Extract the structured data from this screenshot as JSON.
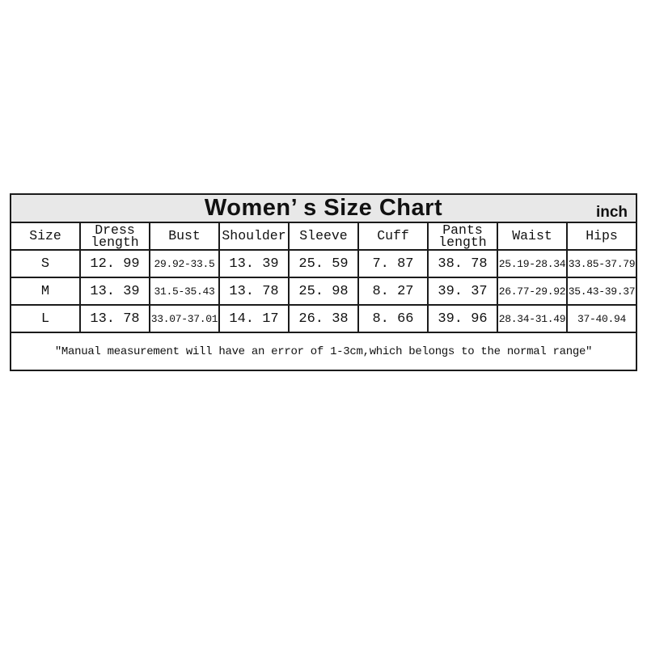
{
  "page": {
    "background_color": "#ffffff"
  },
  "table": {
    "title": "Women’ s Size Chart",
    "unit": "inch",
    "title_bg_color": "#e8e8e8",
    "border_color": "#1b1b1b",
    "headers": [
      "Size",
      "Dress\nlength",
      "Bust",
      "Shoulder",
      "Sleeve",
      "Cuff",
      "Pants\nlength",
      "Waist",
      "Hips"
    ],
    "rows": [
      {
        "cells": [
          "S",
          "12. 99",
          "29.92-33.5",
          "13. 39",
          "25. 59",
          "7. 87",
          "38. 78",
          "25.19-28.34",
          "33.85-37.79"
        ]
      },
      {
        "cells": [
          "M",
          "13. 39",
          "31.5-35.43",
          "13. 78",
          "25. 98",
          "8. 27",
          "39. 37",
          "26.77-29.92",
          "35.43-39.37"
        ]
      },
      {
        "cells": [
          "L",
          "13. 78",
          "33.07-37.01",
          "14. 17",
          "26. 38",
          "8. 66",
          "39. 96",
          "28.34-31.49",
          "37-40.94"
        ]
      }
    ],
    "note": "″Manual measurement will have an error of 1-3cm,which belongs to the normal range″"
  },
  "chart_data": {
    "type": "table",
    "title": "Women's Size Chart",
    "unit": "inch",
    "columns": [
      "Size",
      "Dress length",
      "Bust",
      "Shoulder",
      "Sleeve",
      "Cuff",
      "Pants length",
      "Waist",
      "Hips"
    ],
    "rows": [
      [
        "S",
        "12.99",
        "29.92-33.5",
        "13.39",
        "25.59",
        "7.87",
        "38.78",
        "25.19-28.34",
        "33.85-37.79"
      ],
      [
        "M",
        "13.39",
        "31.5-35.43",
        "13.78",
        "25.98",
        "8.27",
        "39.37",
        "26.77-29.92",
        "35.43-39.37"
      ],
      [
        "L",
        "13.78",
        "33.07-37.01",
        "14.17",
        "26.38",
        "8.66",
        "39.96",
        "28.34-31.49",
        "37-40.94"
      ]
    ],
    "note": "Manual measurement will have an error of 1-3cm, which belongs to the normal range"
  }
}
